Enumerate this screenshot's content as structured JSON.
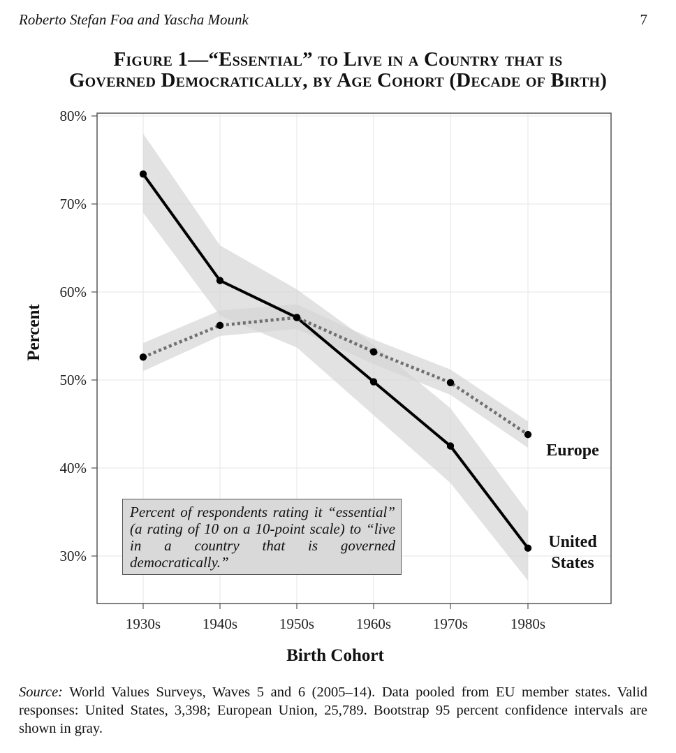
{
  "header": {
    "authors": "Roberto Stefan Foa and Yascha Mounk",
    "page_number": "7"
  },
  "figure": {
    "title_line1": "Figure 1—“Essential” to Live in a Country that is",
    "title_line2": "Governed Democratically, by Age Cohort (Decade of Birth)"
  },
  "note": "Percent of respondents rating it “essential” (a rating of 10 on a 10-point scale) to “live in a country that is governed democratically.”",
  "source": {
    "label": "Source:",
    "text": "World Values Surveys, Waves 5 and 6 (2005–14). Data pooled from EU member states. Valid responses: United States, 3,398; European Union, 25,789. Bootstrap 95 percent confidence intervals are shown in gray."
  },
  "chart_data": {
    "type": "line",
    "xlabel": "Birth Cohort",
    "ylabel": "Percent",
    "categories": [
      "1930s",
      "1940s",
      "1950s",
      "1960s",
      "1970s",
      "1980s"
    ],
    "yticks": [
      "30%",
      "40%",
      "50%",
      "60%",
      "70%",
      "80%"
    ],
    "ylim": [
      25,
      80
    ],
    "grid": true,
    "series": [
      {
        "name": "United States",
        "values": [
          73.4,
          61.3,
          57.1,
          49.8,
          42.5,
          30.9
        ],
        "ci_low": [
          69.0,
          57.3,
          53.7,
          46.0,
          38.3,
          27.2
        ],
        "ci_high": [
          78.0,
          65.3,
          60.3,
          54.0,
          46.8,
          35.0
        ],
        "line_style": "solid",
        "color": "#000000"
      },
      {
        "name": "Europe",
        "values": [
          52.6,
          56.2,
          57.1,
          53.2,
          49.7,
          43.8
        ],
        "ci_low": [
          51.0,
          55.0,
          55.8,
          51.8,
          48.3,
          42.3
        ],
        "ci_high": [
          54.2,
          57.9,
          58.6,
          54.6,
          51.2,
          45.3
        ],
        "line_style": "dotted",
        "color": "#6f6f6f"
      }
    ],
    "series_label_lines": [
      [
        "Europe"
      ],
      [
        "United",
        "States"
      ]
    ],
    "ci_color": "#d5d5d5"
  }
}
